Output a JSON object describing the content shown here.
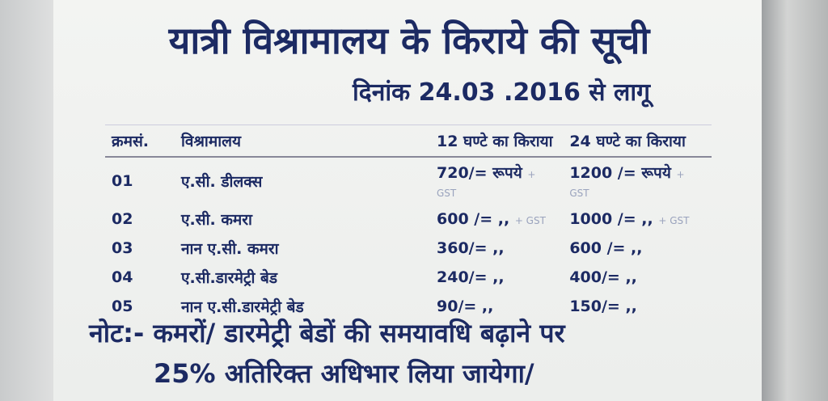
{
  "title": "यात्री विश्रामालय के किराये की सूची",
  "effective_date": "दिनांक 24.03 .2016 से लागू",
  "table": {
    "headers": [
      "क्रमसं.",
      "विश्रामालय",
      "12 घण्टे का किराया",
      "24 घण्टे का किराया"
    ],
    "rows": [
      {
        "sr": "01",
        "room": "ए.सी. डीलक्स",
        "rate12": "720/= रूपये",
        "gst12": "+ GST",
        "rate24": "1200 /= रूपये",
        "gst24": "+ GST"
      },
      {
        "sr": "02",
        "room": "ए.सी. कमरा",
        "rate12": "600 /= ,,",
        "gst12": "+ GST",
        "rate24": "1000 /= ,,",
        "gst24": "+ GST"
      },
      {
        "sr": "03",
        "room": "नान ए.सी. कमरा",
        "rate12": "360/= ,,",
        "gst12": "",
        "rate24": "600 /= ,,",
        "gst24": ""
      },
      {
        "sr": "04",
        "room": "ए.सी.डारमेट्री बेड",
        "rate12": "240/= ,,",
        "gst12": "",
        "rate24": "400/= ,,",
        "gst24": ""
      },
      {
        "sr": "05",
        "room": "नान ए.सी.डारमेट्री बेड",
        "rate12": "90/= ,,",
        "gst12": "",
        "rate24": "150/= ,,",
        "gst24": ""
      }
    ]
  },
  "note_line1": "नोट:- कमरों/ डारमेट्री बेडों की समयावधि बढ़ाने पर",
  "note_line2": "25% अतिरिक्त अधिभार लिया जायेगा/",
  "colors": {
    "ink": "#1c2a63",
    "board": "#f1f2f0"
  }
}
